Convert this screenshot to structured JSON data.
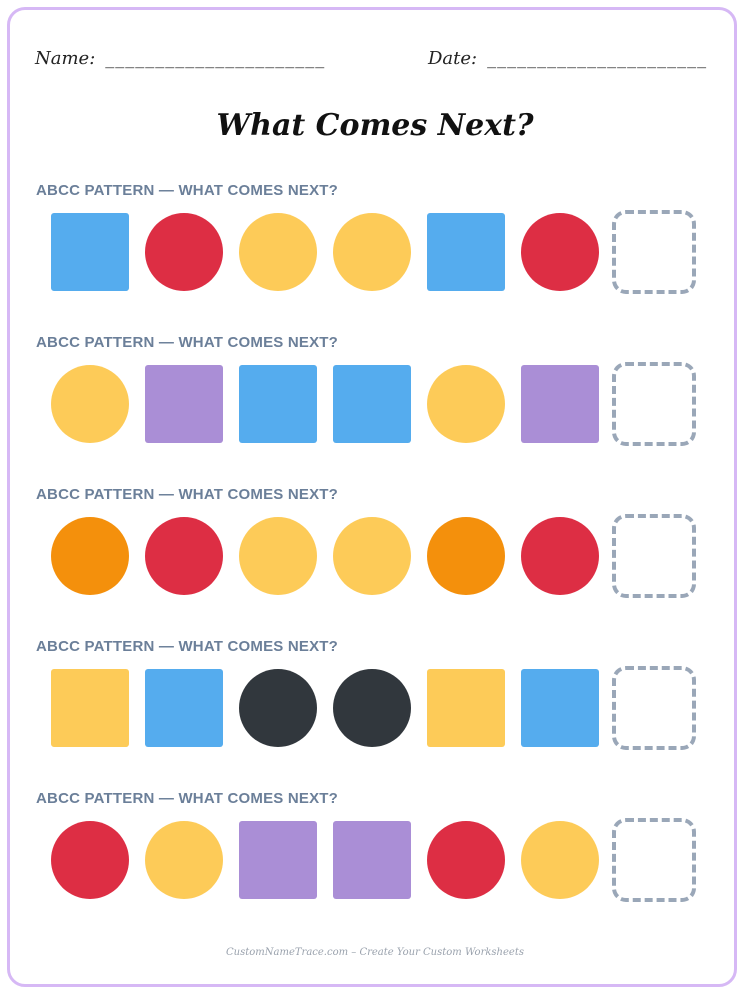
{
  "header": {
    "name_label": "Name:",
    "name_line": "______________________",
    "date_label": "Date:",
    "date_line": "______________________"
  },
  "title": "What Comes Next?",
  "colors": {
    "blue": "#55acee",
    "red": "#dd2e44",
    "yellow": "#fdcb58",
    "purple": "#aa8ed6",
    "orange": "#f4900c",
    "black": "#31373d",
    "blank_border": "#9aa7b8",
    "frame": "#d6b8f5",
    "label": "#6b7f99"
  },
  "patterns": [
    {
      "label": "ABCC PATTERN — WHAT COMES NEXT?",
      "shapes": [
        {
          "shape": "square",
          "color": "blue"
        },
        {
          "shape": "circle",
          "color": "red"
        },
        {
          "shape": "circle",
          "color": "yellow"
        },
        {
          "shape": "circle",
          "color": "yellow"
        },
        {
          "shape": "square",
          "color": "blue"
        },
        {
          "shape": "circle",
          "color": "red"
        }
      ]
    },
    {
      "label": "ABCC PATTERN — WHAT COMES NEXT?",
      "shapes": [
        {
          "shape": "circle",
          "color": "yellow"
        },
        {
          "shape": "square",
          "color": "purple"
        },
        {
          "shape": "square",
          "color": "blue"
        },
        {
          "shape": "square",
          "color": "blue"
        },
        {
          "shape": "circle",
          "color": "yellow"
        },
        {
          "shape": "square",
          "color": "purple"
        }
      ]
    },
    {
      "label": "ABCC PATTERN — WHAT COMES NEXT?",
      "shapes": [
        {
          "shape": "circle",
          "color": "orange"
        },
        {
          "shape": "circle",
          "color": "red"
        },
        {
          "shape": "circle",
          "color": "yellow"
        },
        {
          "shape": "circle",
          "color": "yellow"
        },
        {
          "shape": "circle",
          "color": "orange"
        },
        {
          "shape": "circle",
          "color": "red"
        }
      ]
    },
    {
      "label": "ABCC PATTERN — WHAT COMES NEXT?",
      "shapes": [
        {
          "shape": "square",
          "color": "yellow"
        },
        {
          "shape": "square",
          "color": "blue"
        },
        {
          "shape": "circle",
          "color": "black"
        },
        {
          "shape": "circle",
          "color": "black"
        },
        {
          "shape": "square",
          "color": "yellow"
        },
        {
          "shape": "square",
          "color": "blue"
        }
      ]
    },
    {
      "label": "ABCC PATTERN — WHAT COMES NEXT?",
      "shapes": [
        {
          "shape": "circle",
          "color": "red"
        },
        {
          "shape": "circle",
          "color": "yellow"
        },
        {
          "shape": "square",
          "color": "purple"
        },
        {
          "shape": "square",
          "color": "purple"
        },
        {
          "shape": "circle",
          "color": "red"
        },
        {
          "shape": "circle",
          "color": "yellow"
        }
      ]
    }
  ],
  "footer": "CustomNameTrace.com – Create Your Custom Worksheets"
}
